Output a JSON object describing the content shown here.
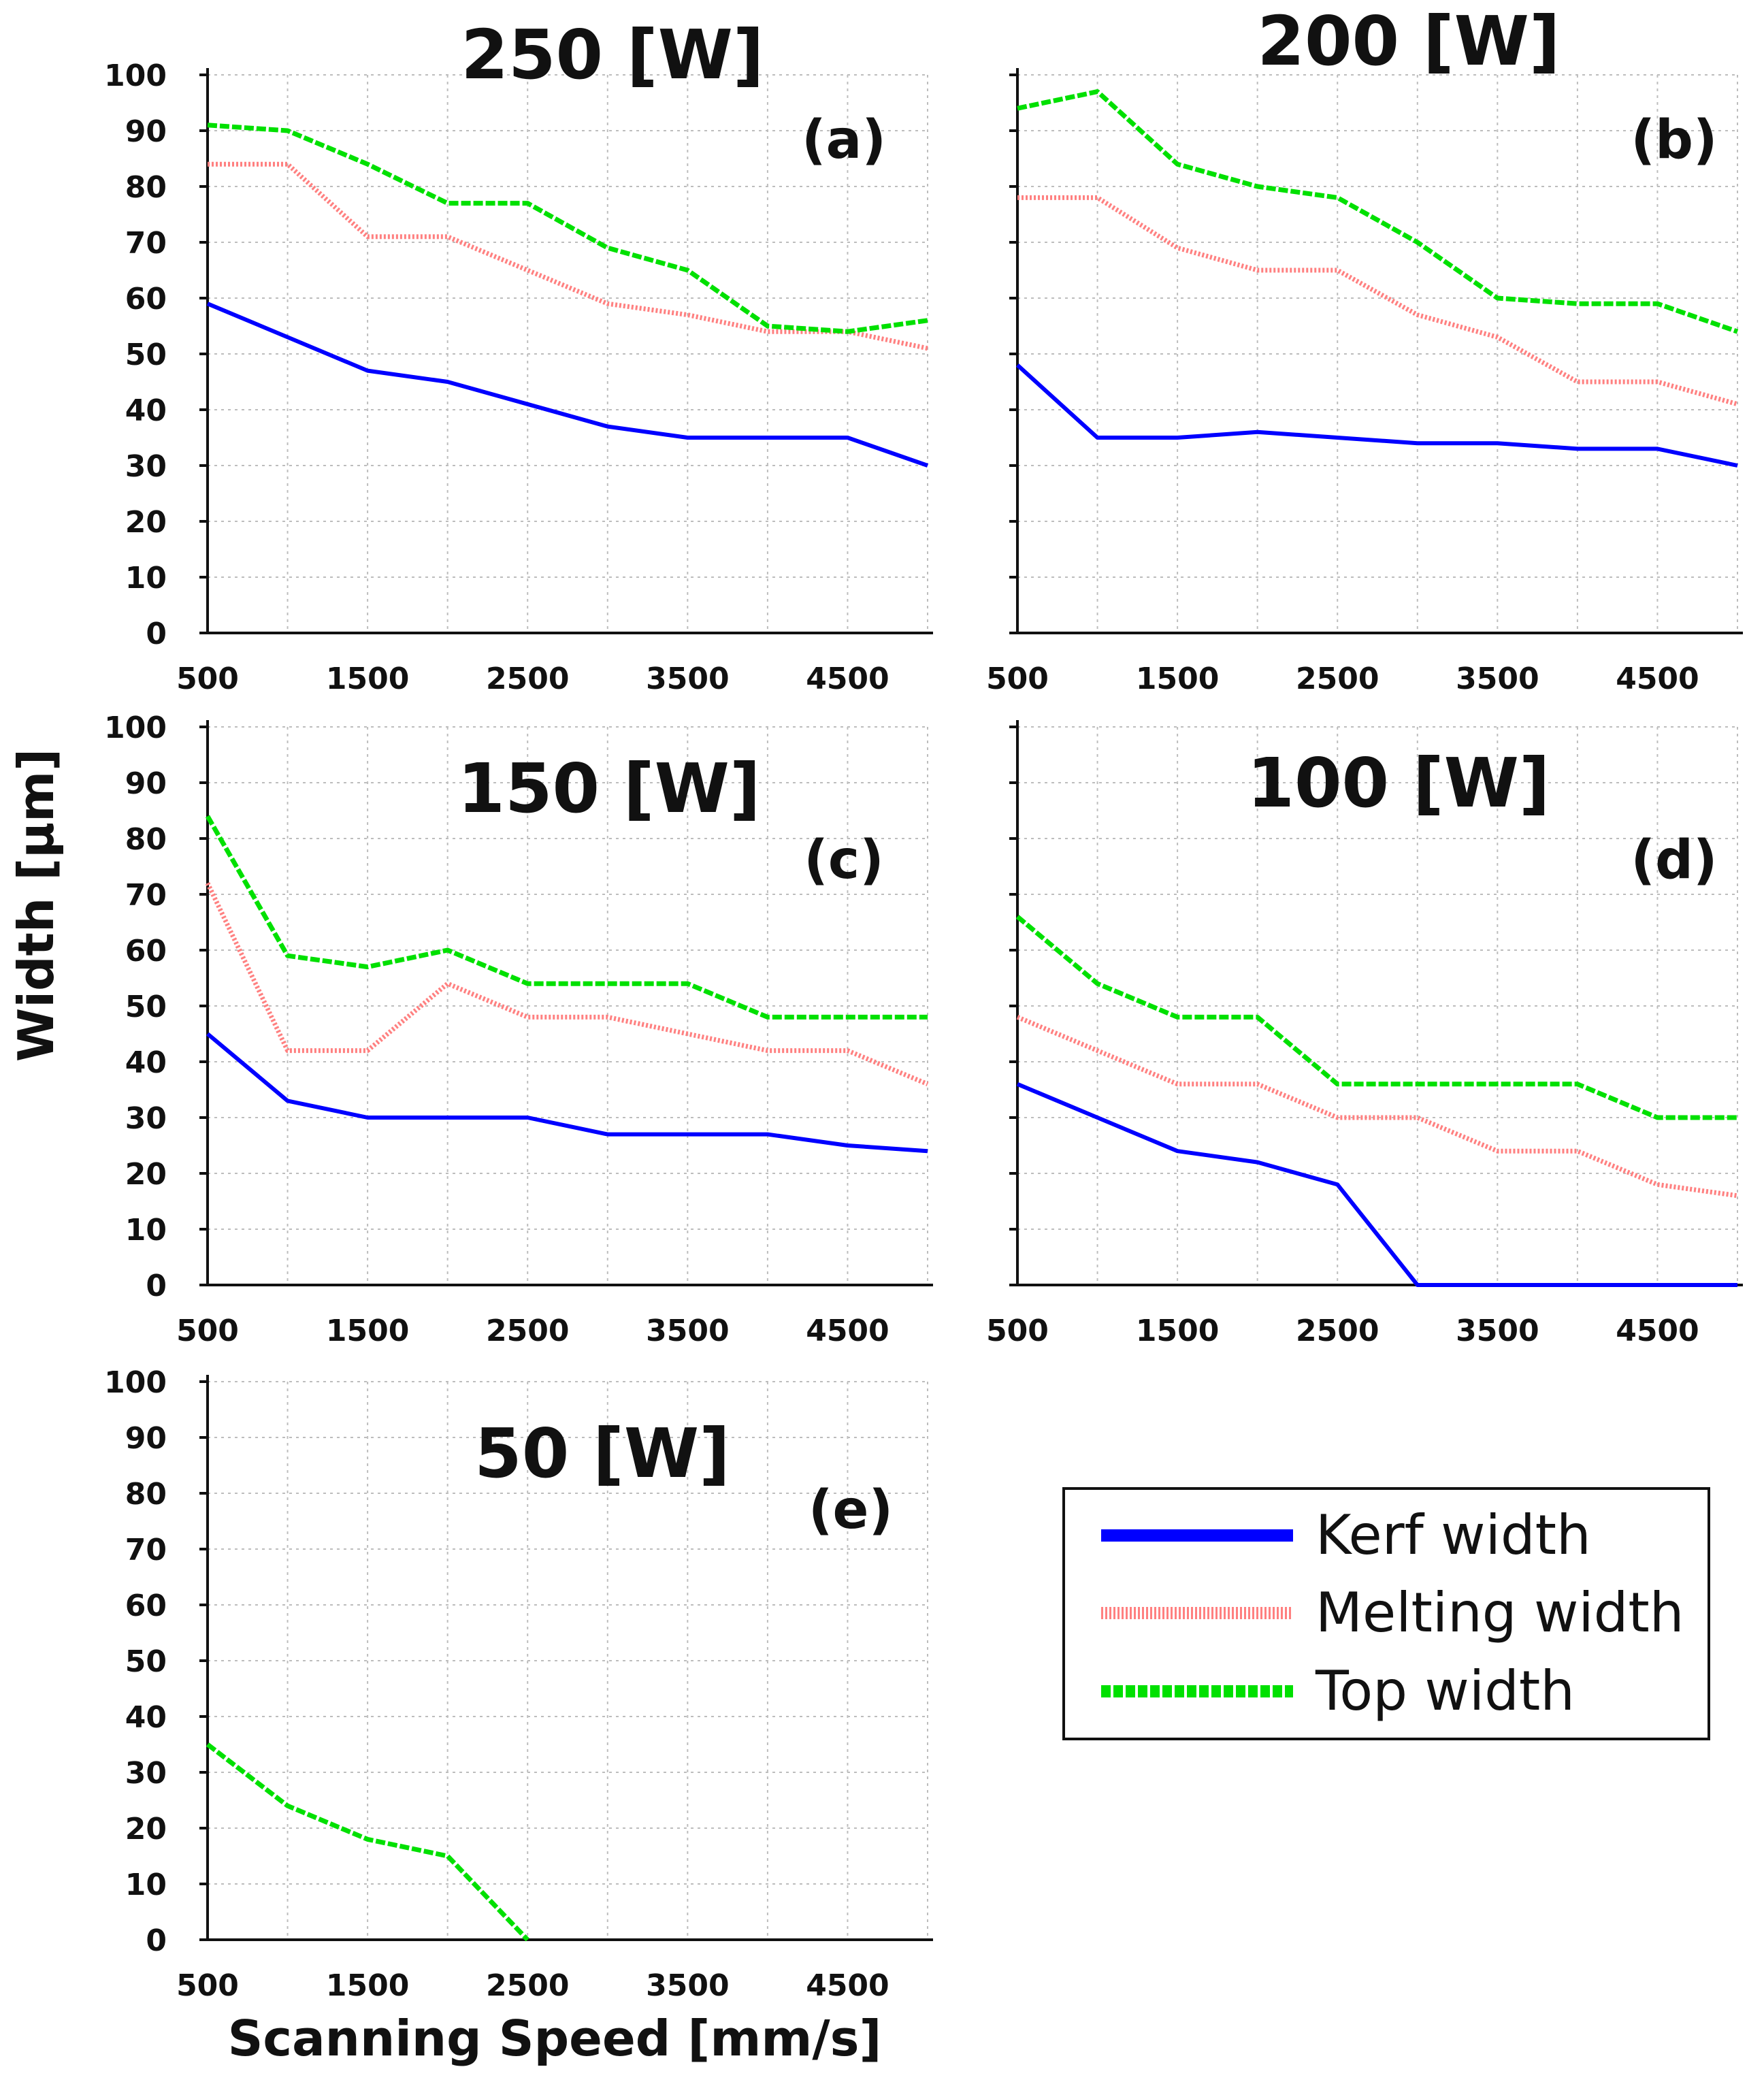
{
  "figure": {
    "ylabel": "Width [μm]",
    "xlabel": "Scanning Speed [mm/s]"
  },
  "legend": {
    "entries": [
      {
        "label": "Kerf width",
        "color": "#0000ff",
        "style": "solid"
      },
      {
        "label": "Melting width",
        "color": "#ff8080",
        "style": "dotted"
      },
      {
        "label": "Top width",
        "color": "#00e000",
        "style": "dashed"
      }
    ]
  },
  "chart_data": [
    {
      "type": "line",
      "panel": "(a)",
      "title": "250 [W]",
      "xlim": [
        500,
        5000
      ],
      "ylim": [
        0,
        100
      ],
      "xticks": [
        "500",
        "1500",
        "2500",
        "3500",
        "4500"
      ],
      "yticks": [
        "0",
        "10",
        "20",
        "30",
        "40",
        "50",
        "60",
        "70",
        "80",
        "90",
        "100"
      ],
      "x": [
        500,
        1000,
        1500,
        2000,
        2500,
        3000,
        3500,
        4000,
        4500,
        5000
      ],
      "series": [
        {
          "name": "Kerf width",
          "values": [
            59,
            53,
            47,
            45,
            41,
            37,
            35,
            35,
            35,
            30
          ]
        },
        {
          "name": "Melting width",
          "values": [
            84,
            84,
            71,
            71,
            65,
            59,
            57,
            54,
            54,
            51
          ]
        },
        {
          "name": "Top width",
          "values": [
            91,
            90,
            84,
            77,
            77,
            69,
            65,
            55,
            54,
            56
          ]
        }
      ]
    },
    {
      "type": "line",
      "panel": "(b)",
      "title": "200 [W]",
      "xlim": [
        500,
        5000
      ],
      "ylim": [
        0,
        100
      ],
      "xticks": [
        "500",
        "1500",
        "2500",
        "3500",
        "4500"
      ],
      "yticks": [],
      "x": [
        500,
        1000,
        1500,
        2000,
        2500,
        3000,
        3500,
        4000,
        4500,
        5000
      ],
      "series": [
        {
          "name": "Kerf width",
          "values": [
            48,
            35,
            35,
            36,
            35,
            34,
            34,
            33,
            33,
            30
          ]
        },
        {
          "name": "Melting width",
          "values": [
            78,
            78,
            69,
            65,
            65,
            57,
            53,
            45,
            45,
            41
          ]
        },
        {
          "name": "Top width",
          "values": [
            94,
            97,
            84,
            80,
            78,
            70,
            60,
            59,
            59,
            54
          ]
        }
      ]
    },
    {
      "type": "line",
      "panel": "(c)",
      "title": "150 [W]",
      "xlim": [
        500,
        5000
      ],
      "ylim": [
        0,
        100
      ],
      "xticks": [
        "500",
        "1500",
        "2500",
        "3500",
        "4500"
      ],
      "yticks": [
        "0",
        "10",
        "20",
        "30",
        "40",
        "50",
        "60",
        "70",
        "80",
        "90",
        "100"
      ],
      "x": [
        500,
        1000,
        1500,
        2000,
        2500,
        3000,
        3500,
        4000,
        4500,
        5000
      ],
      "series": [
        {
          "name": "Kerf width",
          "values": [
            45,
            33,
            30,
            30,
            30,
            27,
            27,
            27,
            25,
            24
          ]
        },
        {
          "name": "Melting width",
          "values": [
            72,
            42,
            42,
            54,
            48,
            48,
            45,
            42,
            42,
            36
          ]
        },
        {
          "name": "Top width",
          "values": [
            84,
            59,
            57,
            60,
            54,
            54,
            54,
            48,
            48,
            48
          ]
        }
      ]
    },
    {
      "type": "line",
      "panel": "(d)",
      "title": "100 [W]",
      "xlim": [
        500,
        5000
      ],
      "ylim": [
        0,
        100
      ],
      "xticks": [
        "500",
        "1500",
        "2500",
        "3500",
        "4500"
      ],
      "yticks": [],
      "x": [
        500,
        1000,
        1500,
        2000,
        2500,
        3000,
        3500,
        4000,
        4500,
        5000
      ],
      "series": [
        {
          "name": "Kerf width",
          "values": [
            36,
            30,
            24,
            22,
            18,
            0,
            0,
            0,
            0,
            0
          ]
        },
        {
          "name": "Melting width",
          "values": [
            48,
            42,
            36,
            36,
            30,
            30,
            24,
            24,
            18,
            16
          ]
        },
        {
          "name": "Top width",
          "values": [
            66,
            54,
            48,
            48,
            36,
            36,
            36,
            36,
            30,
            30
          ]
        }
      ]
    },
    {
      "type": "line",
      "panel": "(e)",
      "title": "50 [W]",
      "xlim": [
        500,
        5000
      ],
      "ylim": [
        0,
        100
      ],
      "xticks": [
        "500",
        "1500",
        "2500",
        "3500",
        "4500"
      ],
      "yticks": [
        "0",
        "10",
        "20",
        "30",
        "40",
        "50",
        "60",
        "70",
        "80",
        "90",
        "100"
      ],
      "x": [
        500,
        1000,
        1500,
        2000,
        2500
      ],
      "series": [
        {
          "name": "Top width",
          "values": [
            35,
            24,
            18,
            15,
            0
          ]
        }
      ]
    }
  ]
}
